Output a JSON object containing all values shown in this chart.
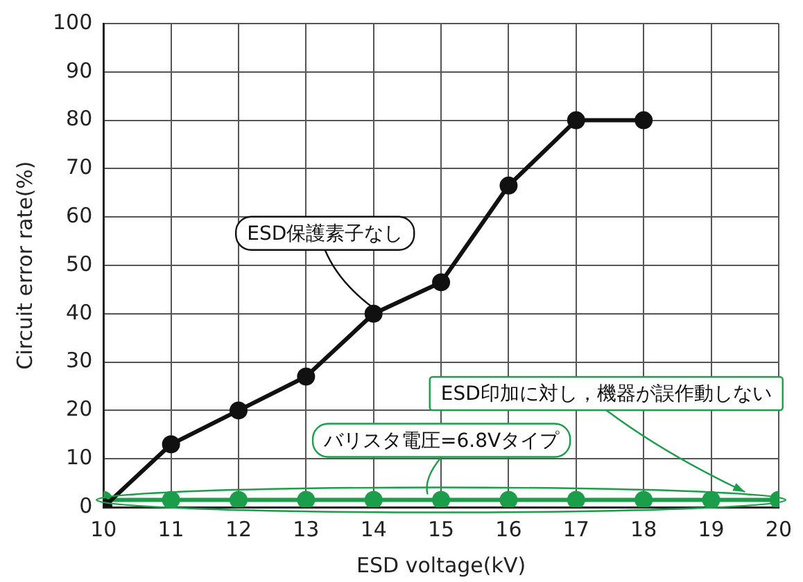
{
  "chart_data": {
    "type": "line",
    "xlabel": "ESD voltage(kV)",
    "ylabel": "Circuit error rate(%)",
    "x": [
      10,
      11,
      12,
      13,
      14,
      15,
      16,
      17,
      18,
      19,
      20
    ],
    "series": [
      {
        "color": "#111111",
        "values": [
          0,
          13,
          20,
          27,
          40,
          46.5,
          66.5,
          80,
          80,
          null,
          null
        ]
      },
      {
        "color": "#1a9e4a",
        "values": [
          1.5,
          1.5,
          1.5,
          1.5,
          1.5,
          1.5,
          1.5,
          1.5,
          1.5,
          1.5,
          1.5
        ]
      }
    ],
    "xlim": [
      10,
      20
    ],
    "xticks": [
      10,
      11,
      12,
      13,
      14,
      15,
      16,
      17,
      18,
      19,
      20
    ],
    "ylim": [
      0,
      100
    ],
    "yticks": [
      0,
      10,
      20,
      30,
      40,
      50,
      60,
      70,
      80,
      90,
      100
    ],
    "grid": true,
    "legend": false,
    "marker": "circle",
    "line_style": "solid",
    "annotations": [
      {
        "text": "ESD保護素子なし",
        "x": 14,
        "y": 40
      },
      {
        "text": "ESD印加に対し，機器が誤作動しない",
        "x": 19.5,
        "y": 2
      },
      {
        "text": "バリスタ電圧=6.8Vタイプ",
        "x": 14.8,
        "y": 1.5
      }
    ]
  }
}
